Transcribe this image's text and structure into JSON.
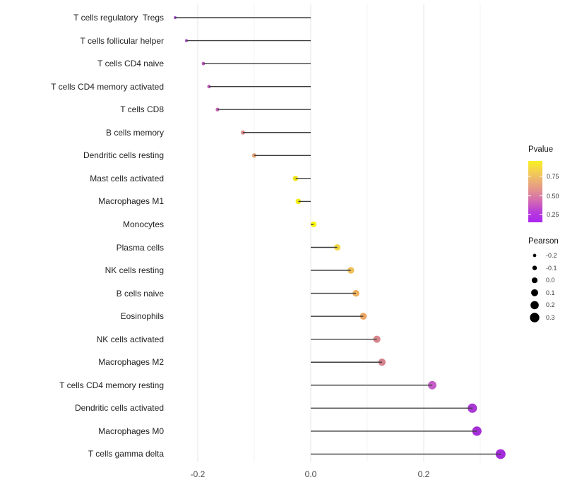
{
  "chart_data": {
    "type": "lollipop",
    "orientation": "horizontal",
    "title": "",
    "xlabel": "",
    "ylabel": "",
    "baseline": 0.0,
    "x_axis": {
      "tick_values": [
        -0.2,
        0.0,
        0.2
      ],
      "tick_labels": [
        "-0.2",
        "0.0",
        "0.2"
      ],
      "minor_gridline_values": [
        -0.1,
        0.1,
        0.3
      ],
      "range": [
        -0.255,
        0.445
      ],
      "grid": "vertical-only"
    },
    "size_encoding": "Pearson",
    "color_encoding": "Pvalue",
    "points": [
      {
        "label": "T cells regulatory  Tregs",
        "pearson": -0.24,
        "color": "#A148CD"
      },
      {
        "label": "T cells follicular helper",
        "pearson": -0.22,
        "color": "#AC50C8"
      },
      {
        "label": "T cells CD4 naive",
        "pearson": -0.19,
        "color": "#C058BC"
      },
      {
        "label": "T cells CD4 memory activated",
        "pearson": -0.18,
        "color": "#C25AB8"
      },
      {
        "label": "T cells CD8",
        "pearson": -0.165,
        "color": "#C765B0"
      },
      {
        "label": "B cells memory",
        "pearson": -0.12,
        "color": "#DA8A8A"
      },
      {
        "label": "Dendritic cells resting",
        "pearson": -0.1,
        "color": "#E2A376"
      },
      {
        "label": "Mast cells activated",
        "pearson": -0.027,
        "color": "#F2E723"
      },
      {
        "label": "Macrophages M1",
        "pearson": -0.022,
        "color": "#F4EC18"
      },
      {
        "label": "Monocytes",
        "pearson": 0.005,
        "color": "#F8F40D"
      },
      {
        "label": "Plasma cells",
        "pearson": 0.047,
        "color": "#F2D741"
      },
      {
        "label": "NK cells resting",
        "pearson": 0.071,
        "color": "#EFBF58"
      },
      {
        "label": "B cells naive",
        "pearson": 0.08,
        "color": "#EDAF5B"
      },
      {
        "label": "Eosinophils",
        "pearson": 0.093,
        "color": "#EDA661"
      },
      {
        "label": "NK cells activated",
        "pearson": 0.117,
        "color": "#D8858C"
      },
      {
        "label": "Macrophages M2",
        "pearson": 0.126,
        "color": "#D4808D"
      },
      {
        "label": "T cells CD4 memory resting",
        "pearson": 0.215,
        "color": "#C45DC7"
      },
      {
        "label": "Dendritic cells activated",
        "pearson": 0.286,
        "color": "#A837D4"
      },
      {
        "label": "Macrophages M0",
        "pearson": 0.294,
        "color": "#A52FD7"
      },
      {
        "label": "T cells gamma delta",
        "pearson": 0.336,
        "color": "#A42BDA"
      }
    ]
  },
  "legend_pvalue": {
    "title": "Pvalue",
    "tick_labels": [
      "0.75",
      "0.50",
      "0.25"
    ],
    "tick_positions": [
      0.25,
      0.57,
      0.87
    ],
    "gradient_top_to_bottom": [
      "#F9F021",
      "#F4D04F",
      "#EBAF73",
      "#E18D93",
      "#D167B5",
      "#B83BDB",
      "#AB24F0"
    ]
  },
  "legend_pearson": {
    "title": "Pearson",
    "items": [
      {
        "label": "-0.2",
        "value": -0.2
      },
      {
        "label": "-0.1",
        "value": -0.1
      },
      {
        "label": "0.0",
        "value": 0.0
      },
      {
        "label": "0.1",
        "value": 0.1
      },
      {
        "label": "0.2",
        "value": 0.2
      },
      {
        "label": "0.3",
        "value": 0.3
      }
    ],
    "dot_color": "#000000"
  },
  "colors": {
    "background": "#FFFFFF",
    "stem": "#3E3E3E",
    "grid_major": "#E7E7E7",
    "grid_minor": "#F3F3F3",
    "axis_text": "#4D4D4D",
    "category_text": "#1F1F1F"
  }
}
